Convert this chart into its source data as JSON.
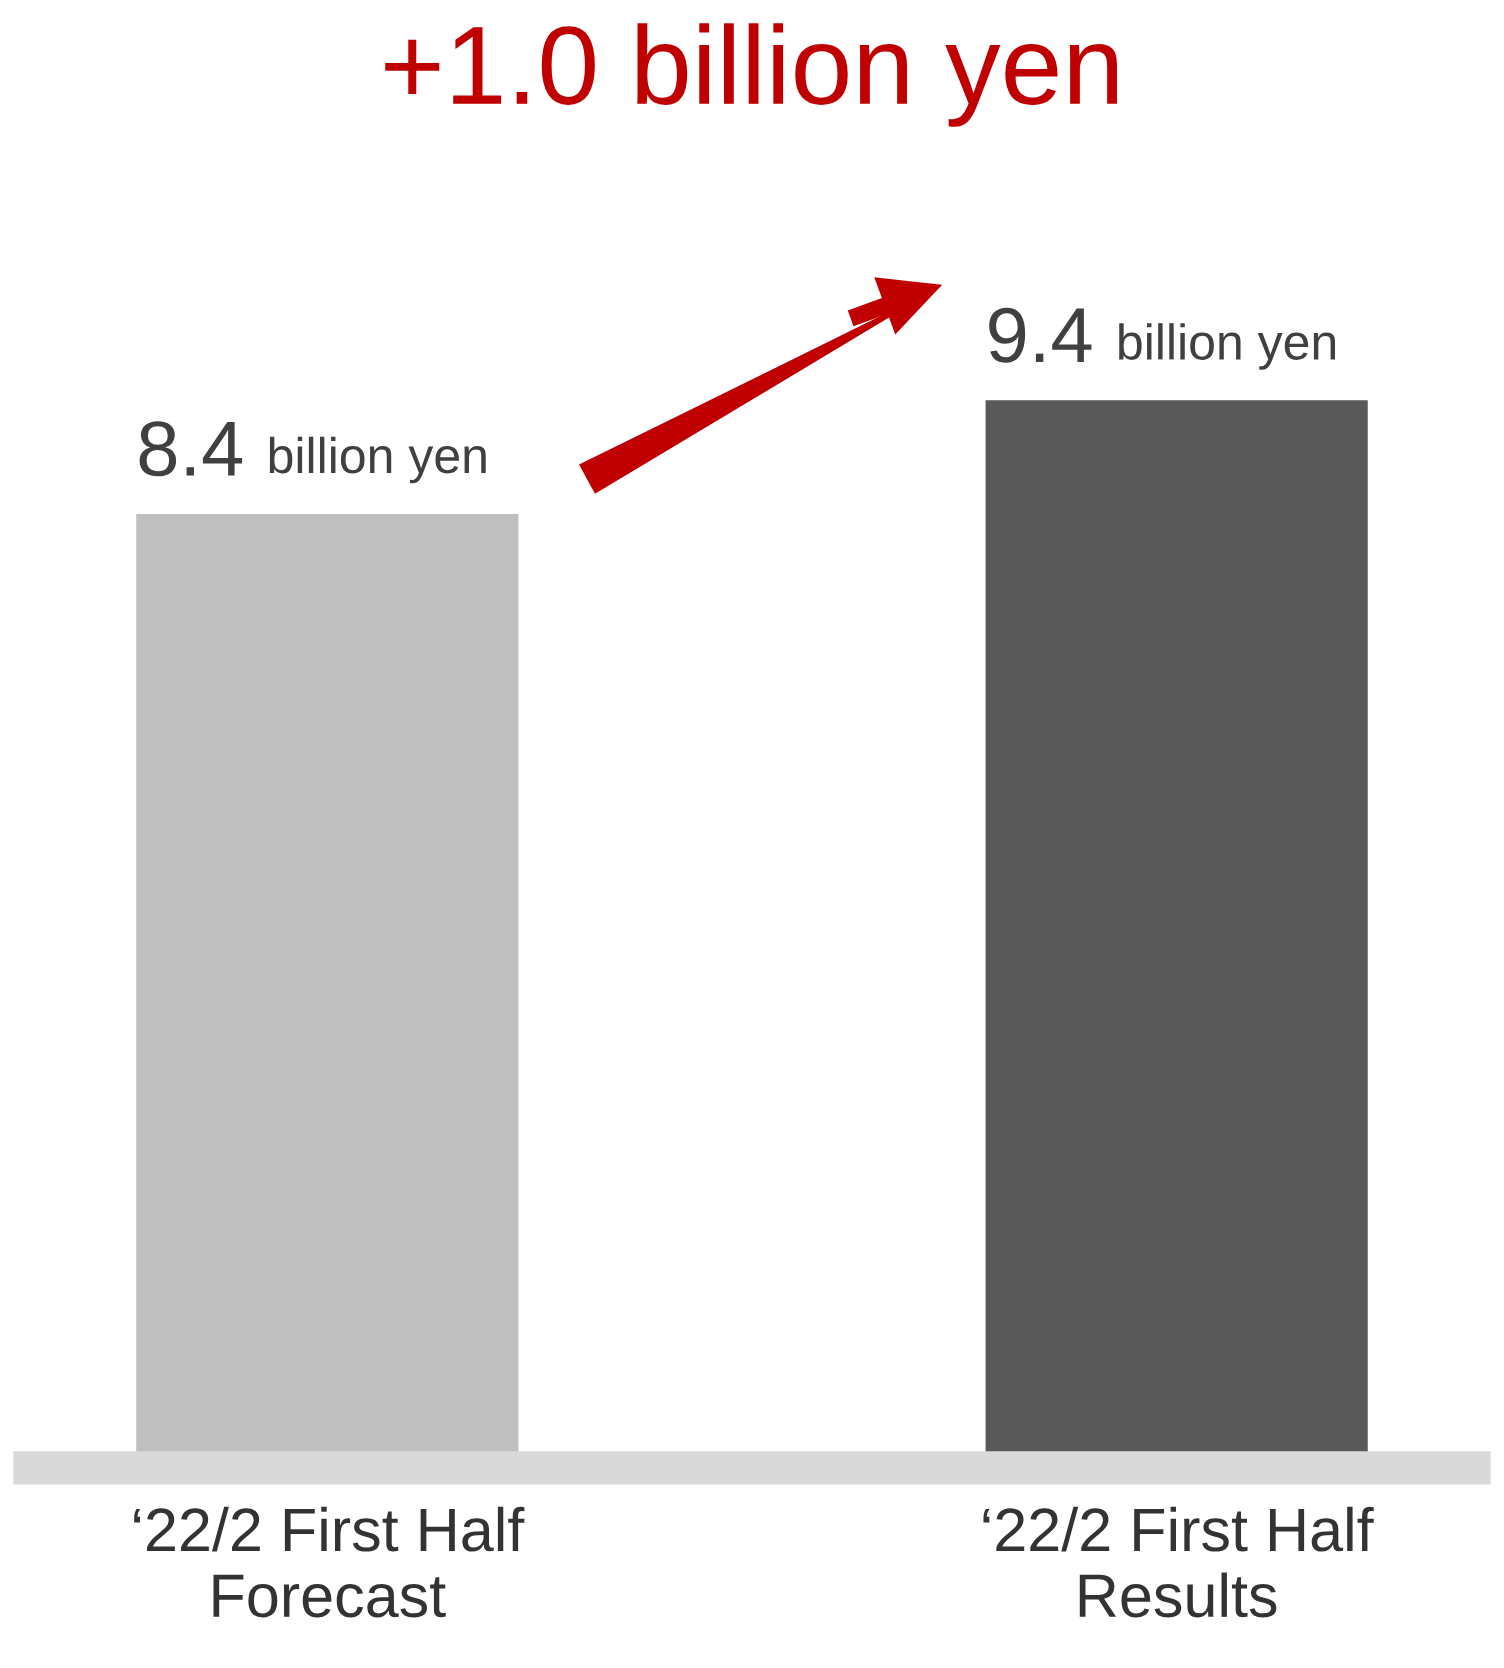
{
  "chart_data": {
    "type": "bar",
    "categories": [
      "‘22/2 First Half\nForecast",
      "‘22/2 First Half\nResults"
    ],
    "values": [
      8.4,
      9.4
    ],
    "colors": [
      "#bfbfbf",
      "#595959"
    ],
    "value_labels": [
      "8.4 billion yen",
      "9.4 billion yen"
    ],
    "annotations": [
      "+1.0 billion yen"
    ],
    "grid": false,
    "legend": false
  }
}
